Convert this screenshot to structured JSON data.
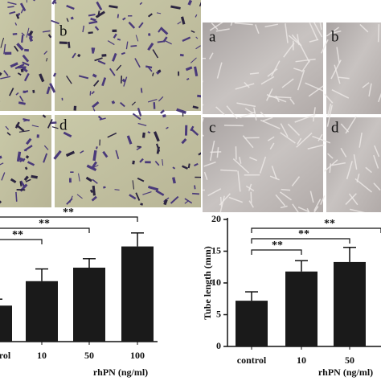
{
  "left_panels": [
    "b",
    "d"
  ],
  "right_panels": [
    "a",
    "b",
    "c",
    "d"
  ],
  "chart_data": [
    {
      "type": "bar",
      "categories": [
        "control",
        "10",
        "50",
        "100"
      ],
      "values": [
        5.6,
        9.4,
        11.5,
        14.8
      ],
      "errors": [
        1.0,
        1.9,
        1.4,
        2.1
      ],
      "xlabel": "rhPN (ng/ml)",
      "annotations": [
        "**",
        "**",
        "**"
      ],
      "color": "#1a1a1a",
      "ylim": [
        0,
        20
      ]
    },
    {
      "type": "bar",
      "categories": [
        "control",
        "10",
        "50"
      ],
      "values": [
        7.2,
        11.8,
        13.3
      ],
      "errors": [
        1.4,
        1.7,
        2.3
      ],
      "xlabel": "rhPN (ng/ml)",
      "ylabel": "Tube length (mm)",
      "annotations": [
        "**",
        "**",
        "**"
      ],
      "color": "#1a1a1a",
      "ylim": [
        0,
        20
      ],
      "yticks": [
        0,
        5,
        10,
        15,
        20
      ]
    }
  ]
}
